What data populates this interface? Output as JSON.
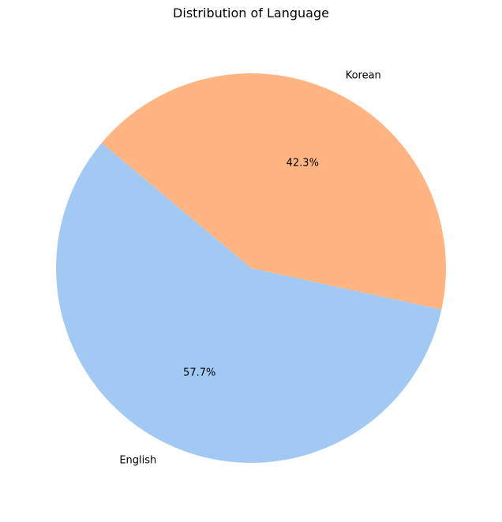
{
  "chart_data": {
    "type": "pie",
    "title": "Distribution of Language",
    "slices": [
      {
        "label": "English",
        "value": 57.7,
        "pct_label": "57.7%",
        "color": "#a1c9f4"
      },
      {
        "label": "Korean",
        "value": 42.3,
        "pct_label": "42.3%",
        "color": "#ffb482"
      }
    ],
    "start_angle_deg": 140,
    "direction": "counterclockwise",
    "legend": "none"
  }
}
